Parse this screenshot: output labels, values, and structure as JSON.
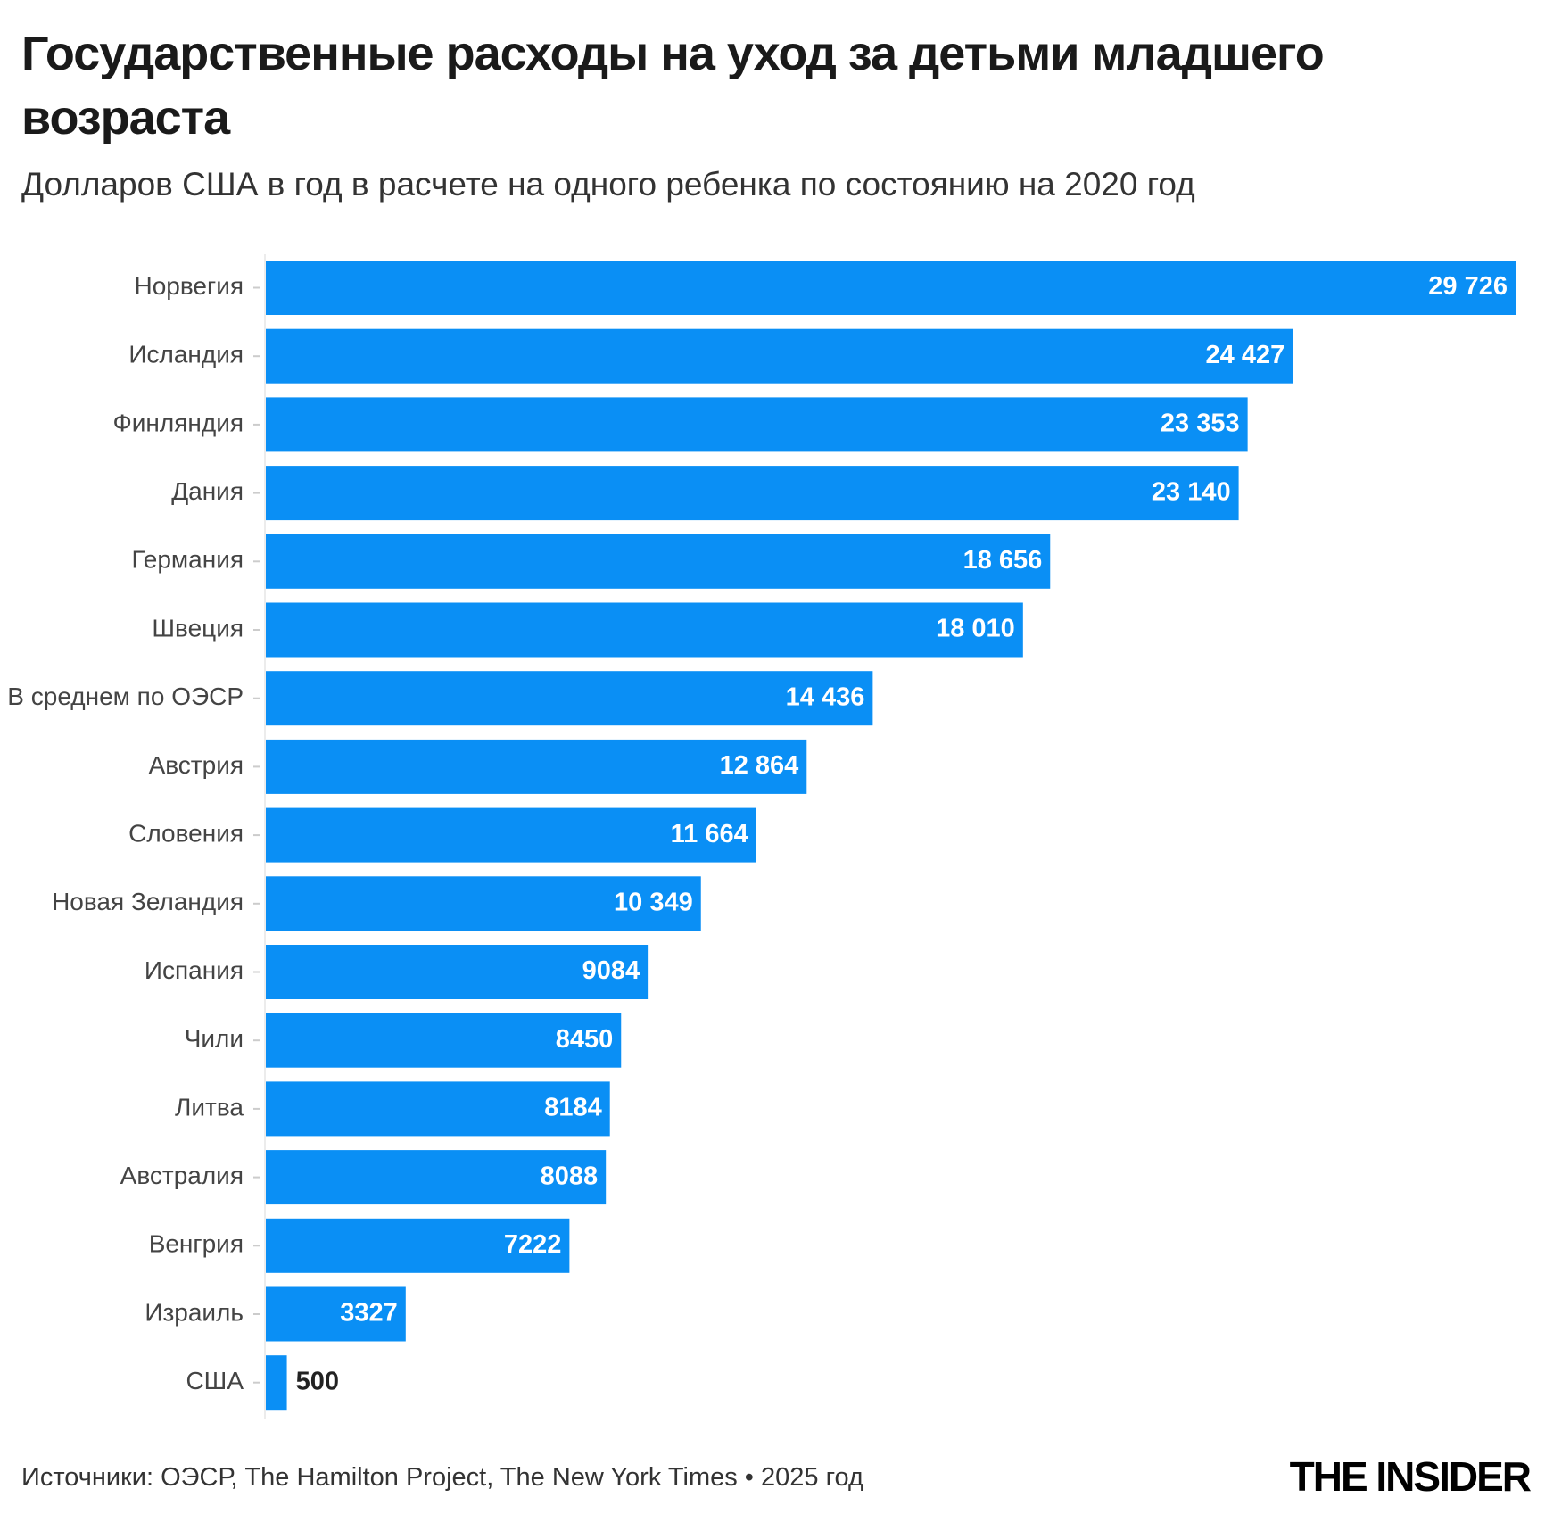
{
  "chart_data": {
    "type": "hbar",
    "title": "Государственные расходы на уход за детьми младшего возраста",
    "subtitle": "Долларов США в год в расчете на одного ребенка по состоянию на 2020 год",
    "categories": [
      "Норвегия",
      "Исландия",
      "Финляндия",
      "Дания",
      "Германия",
      "Швеция",
      "В среднем по ОЭСР",
      "Австрия",
      "Словения",
      "Новая Зеландия",
      "Испания",
      "Чили",
      "Литва",
      "Австралия",
      "Венгрия",
      "Израиль",
      "США"
    ],
    "values": [
      29726,
      24427,
      23353,
      23140,
      18656,
      18010,
      14436,
      12864,
      11664,
      10349,
      9084,
      8450,
      8184,
      8088,
      7222,
      3327,
      500
    ],
    "value_labels": [
      "29 726",
      "24 427",
      "23 353",
      "23 140",
      "18 656",
      "18 010",
      "14 436",
      "12 864",
      "11 664",
      "10 349",
      "9084",
      "8450",
      "8184",
      "8088",
      "7222",
      "3327",
      "500"
    ],
    "color": "#0a8ff5",
    "source": "Источники: ОЭСР, The Hamilton Project, The New York Times • 2025 год",
    "logo": "THE INSIDER"
  }
}
